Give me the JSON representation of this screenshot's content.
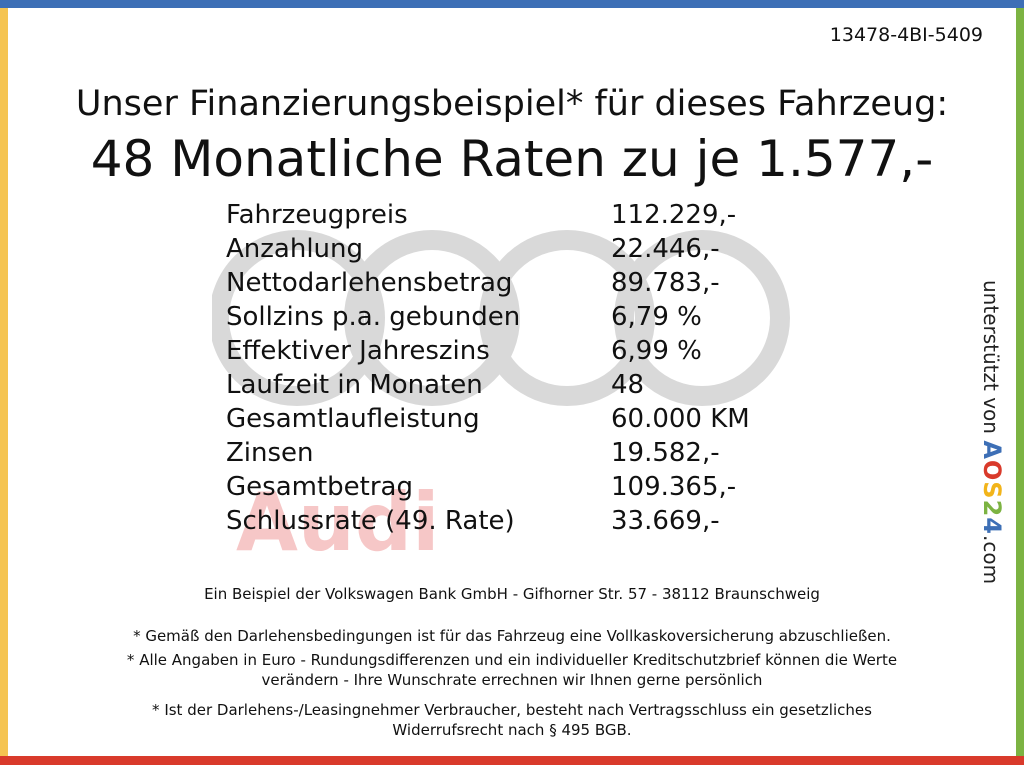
{
  "reference": "13478-4BI-5409",
  "headline": "Unser Finanzierungsbeispiel* für dieses Fahrzeug:",
  "subline": "48 Monatliche Raten zu je 1.577,-",
  "watermark": {
    "brand": "Audi",
    "brand_color": "#f6c7c7",
    "ring_color": "#d9d9d9"
  },
  "finance": [
    {
      "label": "Fahrzeugpreis",
      "value": "112.229,-"
    },
    {
      "label": "Anzahlung",
      "value": "22.446,-"
    },
    {
      "label": "Nettodarlehensbetrag",
      "value": "89.783,-"
    },
    {
      "label": "Sollzins p.a. gebunden",
      "value": "6,79 %"
    },
    {
      "label": "Effektiver Jahreszins",
      "value": "6,99 %"
    },
    {
      "label": "Laufzeit in Monaten",
      "value": "48"
    },
    {
      "label": "Gesamtlaufleistung",
      "value": "60.000 KM"
    },
    {
      "label": "Zinsen",
      "value": "19.582,-"
    },
    {
      "label": "Gesamtbetrag",
      "value": "109.365,-"
    },
    {
      "label": "Schlussrate (49. Rate)",
      "value": "33.669,-"
    }
  ],
  "side_credit": {
    "prefix": "unterstützt von",
    "brand_a": "A",
    "brand_o": "O",
    "brand_s": "S",
    "brand_2": "2",
    "brand_4": "4",
    "suffix": ".com"
  },
  "footer": {
    "bank": "Ein Beispiel der Volkswagen Bank GmbH - Gifhorner Str. 57 - 38112 Braunschweig",
    "note1": "* Gemäß den Darlehensbedingungen ist für das Fahrzeug eine Vollkaskoversicherung abzuschließen.",
    "note2_line1": "* Alle Angaben in Euro - Rundungsdifferenzen und ein individueller Kreditschutzbrief können die Werte",
    "note2_line2": "verändern - Ihre Wunschrate errechnen wir Ihnen gerne persönlich",
    "note3_line1": "* Ist der Darlehens-/Leasingnehmer Verbraucher, besteht nach Vertragsschluss ein gesetzliches",
    "note3_line2": "Widerrufsrecht nach § 495 BGB."
  },
  "colors": {
    "top_bar": "#3d6fb6",
    "right_bar": "#7cb342",
    "bottom_bar": "#d93a2b",
    "left_bar": "#f5c451"
  }
}
